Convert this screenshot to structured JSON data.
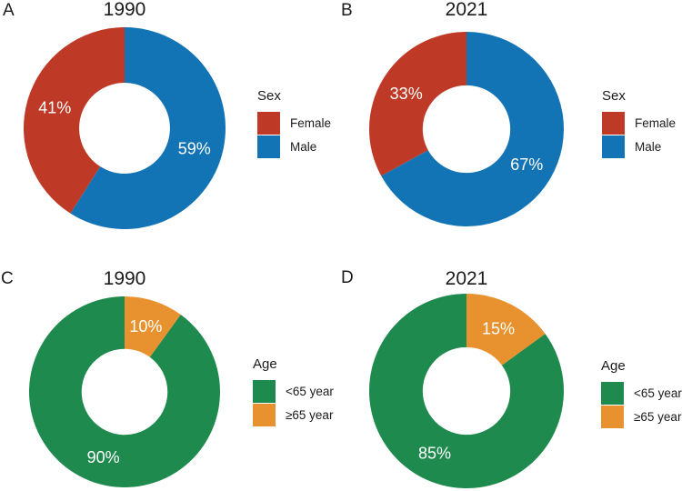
{
  "figure_title": "",
  "text_color": "#1b1b1b",
  "pct_label_color": "#ffffff",
  "chart_data": [
    {
      "type": "pie",
      "panel_letter": "A",
      "title": "1990",
      "legend_title": "Sex",
      "donut": true,
      "legend_position": "right",
      "slices": [
        {
          "label": "Female",
          "value": 41,
          "pct_label": "41%",
          "color": "#BE3A26"
        },
        {
          "label": "Male",
          "value": 59,
          "pct_label": "59%",
          "color": "#1273B5"
        }
      ]
    },
    {
      "type": "pie",
      "panel_letter": "B",
      "title": "2021",
      "legend_title": "Sex",
      "donut": true,
      "legend_position": "right",
      "slices": [
        {
          "label": "Female",
          "value": 33,
          "pct_label": "33%",
          "color": "#BE3A26"
        },
        {
          "label": "Male",
          "value": 67,
          "pct_label": "67%",
          "color": "#1273B5"
        }
      ]
    },
    {
      "type": "pie",
      "panel_letter": "C",
      "title": "1990",
      "legend_title": "Age",
      "donut": true,
      "legend_position": "right",
      "slices": [
        {
          "label": "<65 year",
          "value": 90,
          "pct_label": "90%",
          "color": "#1E8A4D"
        },
        {
          "label": "≥65 year",
          "value": 10,
          "pct_label": "10%",
          "color": "#E8922F"
        }
      ]
    },
    {
      "type": "pie",
      "panel_letter": "D",
      "title": "2021",
      "legend_title": "Age",
      "donut": true,
      "legend_position": "right",
      "slices": [
        {
          "label": "<65 year",
          "value": 85,
          "pct_label": "85%",
          "color": "#1E8A4D"
        },
        {
          "label": "≥65 year",
          "value": 15,
          "pct_label": "15%",
          "color": "#E8922F"
        }
      ]
    }
  ]
}
